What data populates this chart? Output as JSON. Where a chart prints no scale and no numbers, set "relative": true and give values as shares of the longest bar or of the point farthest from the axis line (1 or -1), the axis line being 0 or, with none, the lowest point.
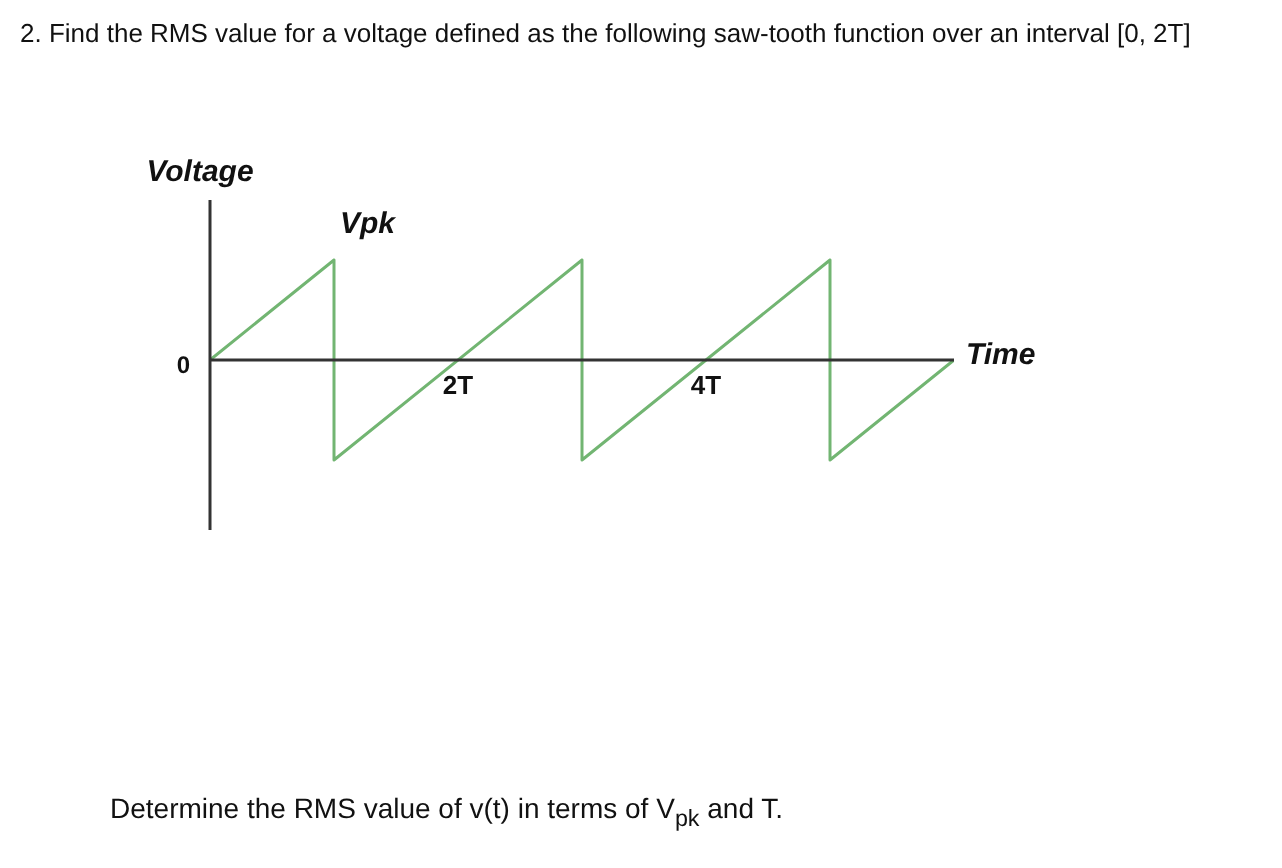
{
  "chart_data": {
    "type": "line",
    "title": "2. Find the RMS value for a voltage defined as the following saw-tooth function over an interval [0, 2T]",
    "xlabel": "Time",
    "ylabel": "Voltage",
    "relative": true,
    "marker": "none",
    "x": [
      0,
      1,
      1,
      3,
      3,
      5,
      5,
      6
    ],
    "series": [
      {
        "color": "#72b572",
        "values": [
          0,
          1,
          -1,
          1,
          -1,
          1,
          -1,
          0
        ]
      }
    ],
    "xlim": [
      0,
      6
    ],
    "xticks": [
      {
        "value": 2,
        "label": "2T"
      },
      {
        "value": 4,
        "label": "4T"
      }
    ],
    "annotations": [
      {
        "text": "Vpk",
        "x": 1,
        "y": 1
      },
      {
        "text": "0",
        "x": 0,
        "y": 0
      },
      "Determine the RMS value of v(t) in terms of V$_{pk}$ and T."
    ]
  }
}
